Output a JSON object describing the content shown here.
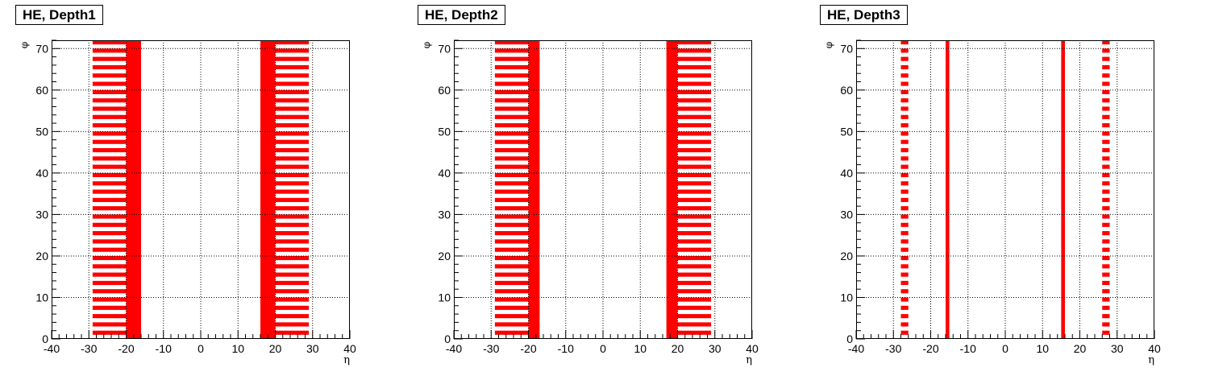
{
  "style": {
    "fill_color": "#ff0000",
    "frame_color": "#000000",
    "background": "#ffffff"
  },
  "chart_data": [
    {
      "type": "heatmap",
      "title": "HE, Depth1",
      "xlabel": "η",
      "ylabel": "φ",
      "xlim": [
        -40,
        40
      ],
      "ylim": [
        0,
        72
      ],
      "xticks": [
        "-40",
        "-30",
        "-20",
        "-10",
        "0",
        "10",
        "20",
        "30",
        "40"
      ],
      "yticks": [
        "0",
        "10",
        "20",
        "30",
        "40",
        "50",
        "60",
        "70"
      ],
      "grid": true,
      "regions": [
        {
          "eta": [
            -29,
            -20
          ],
          "pattern": "odd-phi"
        },
        {
          "eta": [
            -20,
            -16
          ],
          "pattern": "solid"
        },
        {
          "eta": [
            16,
            20
          ],
          "pattern": "solid"
        },
        {
          "eta": [
            20,
            29
          ],
          "pattern": "odd-phi"
        }
      ]
    },
    {
      "type": "heatmap",
      "title": "HE, Depth2",
      "xlabel": "η",
      "ylabel": "φ",
      "xlim": [
        -40,
        40
      ],
      "ylim": [
        0,
        72
      ],
      "xticks": [
        "-40",
        "-30",
        "-20",
        "-10",
        "0",
        "10",
        "20",
        "30",
        "40"
      ],
      "yticks": [
        "0",
        "10",
        "20",
        "30",
        "40",
        "50",
        "60",
        "70"
      ],
      "grid": true,
      "regions": [
        {
          "eta": [
            -29,
            -20
          ],
          "pattern": "odd-phi"
        },
        {
          "eta": [
            -20,
            -17
          ],
          "pattern": "solid"
        },
        {
          "eta": [
            17,
            20
          ],
          "pattern": "solid"
        },
        {
          "eta": [
            20,
            29
          ],
          "pattern": "odd-phi"
        }
      ]
    },
    {
      "type": "heatmap",
      "title": "HE, Depth3",
      "xlabel": "η",
      "ylabel": "φ",
      "xlim": [
        -40,
        40
      ],
      "ylim": [
        0,
        72
      ],
      "xticks": [
        "-40",
        "-30",
        "-20",
        "-10",
        "0",
        "10",
        "20",
        "30",
        "40"
      ],
      "yticks": [
        "0",
        "10",
        "20",
        "30",
        "40",
        "50",
        "60",
        "70"
      ],
      "grid": true,
      "regions": [
        {
          "eta": [
            -28,
            -26
          ],
          "pattern": "odd-phi"
        },
        {
          "eta": [
            -16,
            -15
          ],
          "pattern": "solid"
        },
        {
          "eta": [
            15,
            16
          ],
          "pattern": "solid"
        },
        {
          "eta": [
            26,
            28
          ],
          "pattern": "odd-phi"
        }
      ]
    }
  ]
}
